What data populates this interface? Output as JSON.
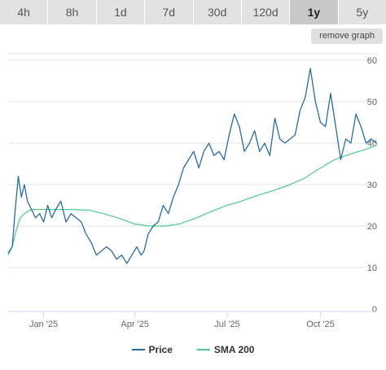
{
  "tabs": [
    {
      "label": "4h",
      "active": false
    },
    {
      "label": "8h",
      "active": false
    },
    {
      "label": "1d",
      "active": false
    },
    {
      "label": "7d",
      "active": false
    },
    {
      "label": "30d",
      "active": false
    },
    {
      "label": "120d",
      "active": false
    },
    {
      "label": "1y",
      "active": true
    },
    {
      "label": "5y",
      "active": false
    }
  ],
  "remove_graph_label": "remove graph",
  "chart_data": {
    "type": "line",
    "x_tick_labels": [
      "Jan '25",
      "Apr '25",
      "Jul '25",
      "Oct '25"
    ],
    "y_tick_labels": [
      "0",
      "10",
      "20",
      "30",
      "40",
      "50",
      "60"
    ],
    "ylim": [
      0,
      60
    ],
    "grid": true,
    "legend_position": "bottom-center",
    "colors": {
      "price": "#2b6b9e",
      "sma": "#4ccb8c",
      "grid": "#e6e6e6",
      "tabs": "#e2e2e2",
      "active_tab": "#c8c8c8"
    },
    "series": [
      {
        "name": "Price",
        "color": "#2b6b9e",
        "x": [
          "2024-11-27",
          "2024-12-01",
          "2024-12-04",
          "2024-12-07",
          "2024-12-10",
          "2024-12-13",
          "2024-12-16",
          "2024-12-20",
          "2024-12-24",
          "2024-12-28",
          "2025-01-01",
          "2025-01-05",
          "2025-01-09",
          "2025-01-13",
          "2025-01-18",
          "2025-01-23",
          "2025-01-28",
          "2025-02-02",
          "2025-02-07",
          "2025-02-12",
          "2025-02-17",
          "2025-02-22",
          "2025-02-27",
          "2025-03-04",
          "2025-03-09",
          "2025-03-14",
          "2025-03-19",
          "2025-03-24",
          "2025-03-29",
          "2025-04-03",
          "2025-04-07",
          "2025-04-10",
          "2025-04-14",
          "2025-04-19",
          "2025-04-24",
          "2025-04-29",
          "2025-05-04",
          "2025-05-09",
          "2025-05-14",
          "2025-05-19",
          "2025-05-24",
          "2025-05-29",
          "2025-06-03",
          "2025-06-08",
          "2025-06-13",
          "2025-06-18",
          "2025-06-23",
          "2025-06-28",
          "2025-07-03",
          "2025-07-08",
          "2025-07-13",
          "2025-07-18",
          "2025-07-23",
          "2025-07-28",
          "2025-08-02",
          "2025-08-07",
          "2025-08-12",
          "2025-08-17",
          "2025-08-22",
          "2025-08-27",
          "2025-09-01",
          "2025-09-06",
          "2025-09-11",
          "2025-09-16",
          "2025-09-21",
          "2025-09-26",
          "2025-10-01",
          "2025-10-06",
          "2025-10-11",
          "2025-10-16",
          "2025-10-21",
          "2025-10-26",
          "2025-10-31",
          "2025-11-05",
          "2025-11-10",
          "2025-11-15",
          "2025-11-20",
          "2025-11-25"
        ],
        "values": [
          13.5,
          15,
          24,
          32,
          27,
          30,
          26,
          24,
          22,
          23,
          21,
          25,
          22,
          24,
          26,
          21,
          23,
          22,
          21,
          18,
          16,
          13,
          14,
          15,
          14,
          12,
          13,
          11,
          13,
          15,
          13,
          14,
          18,
          20,
          21,
          25,
          23,
          27,
          30,
          34,
          36,
          38,
          34,
          38,
          40,
          37,
          38,
          36,
          42,
          47,
          44,
          38,
          40,
          43,
          38,
          40,
          37,
          46,
          41,
          40,
          41,
          42,
          48,
          51,
          58,
          50,
          45,
          44,
          52,
          44,
          36,
          41,
          40,
          47,
          44,
          40,
          41,
          40
        ]
      },
      {
        "name": "SMA 200",
        "color": "#4ccb8c",
        "x": [
          "2024-11-27",
          "2024-12-01",
          "2024-12-05",
          "2024-12-09",
          "2024-12-13",
          "2024-12-18",
          "2024-12-24",
          "2025-01-01",
          "2025-01-10",
          "2025-01-20",
          "2025-02-01",
          "2025-02-15",
          "2025-03-01",
          "2025-03-15",
          "2025-04-01",
          "2025-04-15",
          "2025-05-01",
          "2025-05-15",
          "2025-06-01",
          "2025-06-15",
          "2025-07-01",
          "2025-07-15",
          "2025-08-01",
          "2025-08-15",
          "2025-09-01",
          "2025-09-15",
          "2025-10-01",
          "2025-10-15",
          "2025-11-01",
          "2025-11-15",
          "2025-11-25"
        ],
        "values": [
          13,
          15,
          19,
          22,
          23,
          23.8,
          24,
          24,
          24,
          24,
          24,
          23.8,
          23,
          22,
          20.5,
          20,
          20,
          20.5,
          22,
          23.5,
          25,
          26,
          27.5,
          28.5,
          30,
          31.5,
          34,
          36,
          37.5,
          38.5,
          39.5
        ]
      }
    ]
  }
}
